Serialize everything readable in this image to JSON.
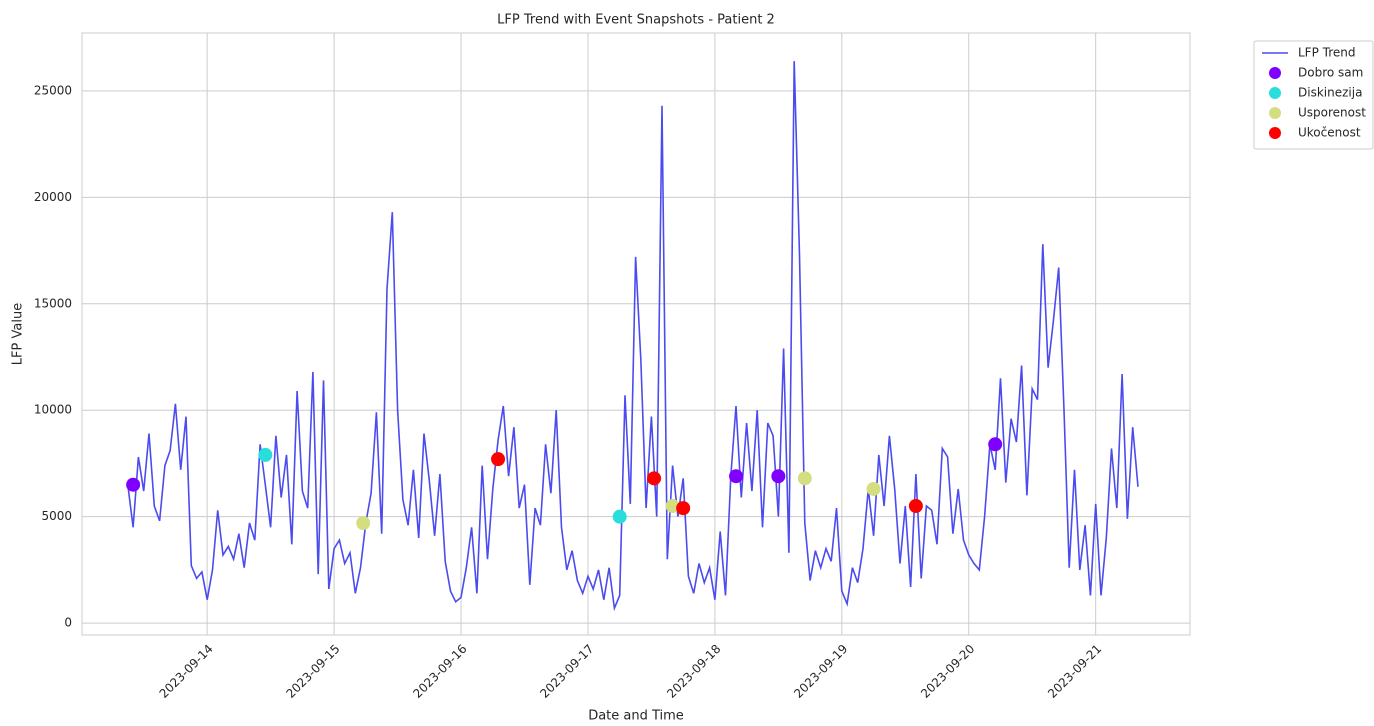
{
  "chart_data": {
    "type": "line",
    "title": "LFP Trend with Event Snapshots - Patient 2",
    "x_label": "Date and Time",
    "y_label": "LFP Value",
    "xlim": [
      "2023-09-13 00:20",
      "2023-09-21 17:50"
    ],
    "xticks": [
      "2023-09-14",
      "2023-09-15",
      "2023-09-16",
      "2023-09-17",
      "2023-09-18",
      "2023-09-19",
      "2023-09-20",
      "2023-09-21"
    ],
    "ylim": [
      -560,
      27720
    ],
    "yticks": [
      0,
      5000,
      10000,
      15000,
      20000,
      25000
    ],
    "grid": true,
    "legend": "outside upper right",
    "series": [
      {
        "name": "LFP Trend",
        "type": "line",
        "color": "#4b4bf0",
        "x": [
          "2023-09-13 09:00",
          "2023-09-13 10:00",
          "2023-09-13 11:00",
          "2023-09-13 12:00",
          "2023-09-13 13:00",
          "2023-09-13 14:00",
          "2023-09-13 15:00",
          "2023-09-13 16:00",
          "2023-09-13 17:00",
          "2023-09-13 18:00",
          "2023-09-13 19:00",
          "2023-09-13 20:00",
          "2023-09-13 21:00",
          "2023-09-13 22:00",
          "2023-09-13 23:00",
          "2023-09-14 00:00",
          "2023-09-14 01:00",
          "2023-09-14 02:00",
          "2023-09-14 03:00",
          "2023-09-14 04:00",
          "2023-09-14 05:00",
          "2023-09-14 06:00",
          "2023-09-14 07:00",
          "2023-09-14 08:00",
          "2023-09-14 09:00",
          "2023-09-14 10:00",
          "2023-09-14 11:00",
          "2023-09-14 12:00",
          "2023-09-14 13:00",
          "2023-09-14 14:00",
          "2023-09-14 15:00",
          "2023-09-14 16:00",
          "2023-09-14 17:00",
          "2023-09-14 18:00",
          "2023-09-14 19:00",
          "2023-09-14 20:00",
          "2023-09-14 21:00",
          "2023-09-14 22:00",
          "2023-09-14 23:00",
          "2023-09-15 00:00",
          "2023-09-15 01:00",
          "2023-09-15 02:00",
          "2023-09-15 03:00",
          "2023-09-15 04:00",
          "2023-09-15 05:00",
          "2023-09-15 06:00",
          "2023-09-15 07:00",
          "2023-09-15 08:00",
          "2023-09-15 09:00",
          "2023-09-15 10:00",
          "2023-09-15 11:00",
          "2023-09-15 12:00",
          "2023-09-15 13:00",
          "2023-09-15 14:00",
          "2023-09-15 15:00",
          "2023-09-15 16:00",
          "2023-09-15 17:00",
          "2023-09-15 18:00",
          "2023-09-15 19:00",
          "2023-09-15 20:00",
          "2023-09-15 21:00",
          "2023-09-15 22:00",
          "2023-09-15 23:00",
          "2023-09-16 00:00",
          "2023-09-16 01:00",
          "2023-09-16 02:00",
          "2023-09-16 03:00",
          "2023-09-16 04:00",
          "2023-09-16 05:00",
          "2023-09-16 06:00",
          "2023-09-16 07:00",
          "2023-09-16 08:00",
          "2023-09-16 09:00",
          "2023-09-16 10:00",
          "2023-09-16 11:00",
          "2023-09-16 12:00",
          "2023-09-16 13:00",
          "2023-09-16 14:00",
          "2023-09-16 15:00",
          "2023-09-16 16:00",
          "2023-09-16 17:00",
          "2023-09-16 18:00",
          "2023-09-16 19:00",
          "2023-09-16 20:00",
          "2023-09-16 21:00",
          "2023-09-16 22:00",
          "2023-09-16 23:00",
          "2023-09-17 00:00",
          "2023-09-17 01:00",
          "2023-09-17 02:00",
          "2023-09-17 03:00",
          "2023-09-17 04:00",
          "2023-09-17 05:00",
          "2023-09-17 06:00",
          "2023-09-17 07:00",
          "2023-09-17 08:00",
          "2023-09-17 09:00",
          "2023-09-17 10:00",
          "2023-09-17 11:00",
          "2023-09-17 12:00",
          "2023-09-17 13:00",
          "2023-09-17 14:00",
          "2023-09-17 15:00",
          "2023-09-17 16:00",
          "2023-09-17 17:00",
          "2023-09-17 18:00",
          "2023-09-17 19:00",
          "2023-09-17 20:00",
          "2023-09-17 21:00",
          "2023-09-17 22:00",
          "2023-09-17 23:00",
          "2023-09-18 00:00",
          "2023-09-18 01:00",
          "2023-09-18 02:00",
          "2023-09-18 03:00",
          "2023-09-18 04:00",
          "2023-09-18 05:00",
          "2023-09-18 06:00",
          "2023-09-18 07:00",
          "2023-09-18 08:00",
          "2023-09-18 09:00",
          "2023-09-18 10:00",
          "2023-09-18 11:00",
          "2023-09-18 12:00",
          "2023-09-18 13:00",
          "2023-09-18 14:00",
          "2023-09-18 15:00",
          "2023-09-18 16:00",
          "2023-09-18 17:00",
          "2023-09-18 18:00",
          "2023-09-18 19:00",
          "2023-09-18 20:00",
          "2023-09-18 21:00",
          "2023-09-18 22:00",
          "2023-09-18 23:00",
          "2023-09-19 00:00",
          "2023-09-19 01:00",
          "2023-09-19 02:00",
          "2023-09-19 03:00",
          "2023-09-19 04:00",
          "2023-09-19 05:00",
          "2023-09-19 06:00",
          "2023-09-19 07:00",
          "2023-09-19 08:00",
          "2023-09-19 09:00",
          "2023-09-19 10:00",
          "2023-09-19 11:00",
          "2023-09-19 12:00",
          "2023-09-19 13:00",
          "2023-09-19 14:00",
          "2023-09-19 15:00",
          "2023-09-19 16:00",
          "2023-09-19 17:00",
          "2023-09-19 18:00",
          "2023-09-19 19:00",
          "2023-09-19 20:00",
          "2023-09-19 21:00",
          "2023-09-19 22:00",
          "2023-09-19 23:00",
          "2023-09-20 00:00",
          "2023-09-20 01:00",
          "2023-09-20 02:00",
          "2023-09-20 03:00",
          "2023-09-20 04:00",
          "2023-09-20 05:00",
          "2023-09-20 06:00",
          "2023-09-20 07:00",
          "2023-09-20 08:00",
          "2023-09-20 09:00",
          "2023-09-20 10:00",
          "2023-09-20 11:00",
          "2023-09-20 12:00",
          "2023-09-20 13:00",
          "2023-09-20 14:00",
          "2023-09-20 15:00",
          "2023-09-20 16:00",
          "2023-09-20 17:00",
          "2023-09-20 18:00",
          "2023-09-20 19:00",
          "2023-09-20 20:00",
          "2023-09-20 21:00",
          "2023-09-20 22:00",
          "2023-09-20 23:00",
          "2023-09-21 00:00",
          "2023-09-21 01:00",
          "2023-09-21 02:00",
          "2023-09-21 03:00",
          "2023-09-21 04:00",
          "2023-09-21 05:00",
          "2023-09-21 06:00",
          "2023-09-21 07:00",
          "2023-09-21 08:00"
        ],
        "values": [
          6500,
          4500,
          7800,
          6200,
          8900,
          5500,
          4800,
          7400,
          8100,
          10300,
          7200,
          9700,
          2700,
          2100,
          2400,
          1100,
          2500,
          5300,
          3200,
          3600,
          3000,
          4200,
          2600,
          4700,
          3900,
          8400,
          6500,
          4500,
          8800,
          5900,
          7900,
          3700,
          10900,
          6200,
          5400,
          11800,
          2300,
          11400,
          1600,
          3500,
          3900,
          2800,
          3300,
          1400,
          2600,
          4700,
          6100,
          9900,
          4200,
          15700,
          19300,
          10000,
          5800,
          4600,
          7200,
          4000,
          8900,
          6700,
          4100,
          7000,
          2900,
          1500,
          1000,
          1200,
          2600,
          4500,
          1400,
          7400,
          3000,
          6300,
          8600,
          10200,
          6900,
          9200,
          5400,
          6500,
          1800,
          5400,
          4600,
          8400,
          6100,
          10000,
          4500,
          2500,
          3400,
          2000,
          1400,
          2200,
          1600,
          2500,
          1100,
          2600,
          700,
          1300,
          10700,
          5600,
          17200,
          12400,
          5400,
          9700,
          5000,
          24300,
          3000,
          7400,
          5000,
          6800,
          2200,
          1400,
          2800,
          1900,
          2600,
          1100,
          4300,
          1300,
          6900,
          10200,
          5900,
          9400,
          6200,
          10000,
          4500,
          9400,
          8800,
          5000,
          12900,
          3300,
          26400,
          17300,
          4700,
          2000,
          3400,
          2600,
          3500,
          2900,
          5400,
          1500,
          900,
          2600,
          1900,
          3500,
          6300,
          4100,
          7900,
          5500,
          8800,
          6300,
          2800,
          5500,
          1700,
          7000,
          2100,
          5500,
          5300,
          3700,
          8200,
          7800,
          4200,
          6300,
          3900,
          3200,
          2800,
          2500,
          5000,
          8400,
          7200,
          11500,
          6600,
          9600,
          8500,
          12100,
          6000,
          11000,
          10500,
          17800,
          12000,
          14200,
          16700,
          10000,
          2600,
          7200,
          2500,
          4600,
          1300,
          5600,
          1300,
          4000,
          8200,
          5400,
          11700,
          4900,
          9200,
          6400
        ]
      },
      {
        "name": "Dobro sam",
        "type": "scatter",
        "color": "#8000ff",
        "x": [
          "2023-09-13 10:00",
          "2023-09-18 04:00",
          "2023-09-18 12:00",
          "2023-09-20 05:00"
        ],
        "values": [
          6500,
          6900,
          6900,
          8400
        ]
      },
      {
        "name": "Diskinezija",
        "type": "scatter",
        "color": "#2adddd",
        "x": [
          "2023-09-14 11:00",
          "2023-09-17 06:00"
        ],
        "values": [
          7900,
          5000
        ]
      },
      {
        "name": "Usporenost",
        "type": "scatter",
        "color": "#d4dd80",
        "x": [
          "2023-09-15 05:30",
          "2023-09-17 16:00",
          "2023-09-18 17:00",
          "2023-09-19 06:00"
        ],
        "values": [
          4700,
          5500,
          6800,
          6300
        ]
      },
      {
        "name": "Ukočenost",
        "type": "scatter",
        "color": "#ff0000",
        "x": [
          "2023-09-16 07:00",
          "2023-09-17 12:30",
          "2023-09-17 18:00",
          "2023-09-19 14:00"
        ],
        "values": [
          7700,
          6800,
          5400,
          5500
        ]
      }
    ]
  }
}
